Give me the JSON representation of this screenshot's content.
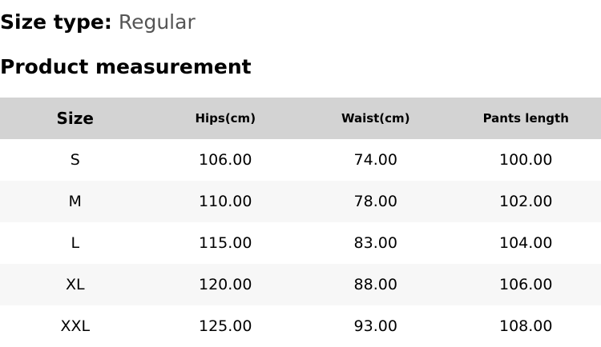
{
  "size_type": {
    "label": "Size type:",
    "value": "Regular"
  },
  "section_title": "Product measurement",
  "table": {
    "headers": [
      "Size",
      "Hips(cm)",
      "Waist(cm)",
      "Pants length"
    ],
    "rows": [
      [
        "S",
        "106.00",
        "74.00",
        "100.00"
      ],
      [
        "M",
        "110.00",
        "78.00",
        "102.00"
      ],
      [
        "L",
        "115.00",
        "83.00",
        "104.00"
      ],
      [
        "XL",
        "120.00",
        "88.00",
        "106.00"
      ],
      [
        "XXL",
        "125.00",
        "93.00",
        "108.00"
      ]
    ]
  }
}
